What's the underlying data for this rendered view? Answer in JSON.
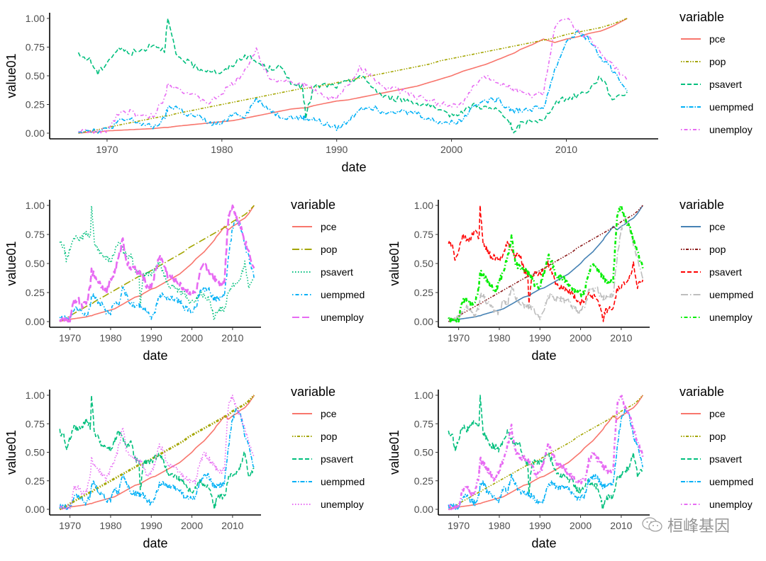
{
  "chart_data": [
    {
      "type": "line",
      "panel": "top",
      "xlabel": "date",
      "ylabel": "value01",
      "xlim": [
        1965,
        2018
      ],
      "ylim": [
        0,
        1
      ],
      "xticks": [
        1970,
        1980,
        1990,
        2000,
        2010
      ],
      "yticks": [
        "0.00",
        "0.25",
        "0.50",
        "0.75",
        "1.00"
      ],
      "legend_title": "variable",
      "legend_position": "right",
      "grid": false,
      "scale": "linetype+default-color",
      "series": [
        {
          "name": "pce",
          "color": "#F8766D",
          "linetype": "solid"
        },
        {
          "name": "pop",
          "color": "#A3A500",
          "linetype": "dotted-dash"
        },
        {
          "name": "psavert",
          "color": "#00BF7D",
          "linetype": "dashed"
        },
        {
          "name": "uempmed",
          "color": "#00B0F6",
          "linetype": "dash-dot"
        },
        {
          "name": "unemploy",
          "color": "#E76BF3",
          "linetype": "dot-dash"
        }
      ]
    },
    {
      "type": "line",
      "panel": "middle-left",
      "xlabel": "date",
      "ylabel": "value01",
      "xlim": [
        1965,
        2017
      ],
      "ylim": [
        0,
        1
      ],
      "xticks": [
        1970,
        1980,
        1990,
        2000,
        2010
      ],
      "yticks": [
        "0.00",
        "0.25",
        "0.50",
        "0.75",
        "1.00"
      ],
      "legend_title": "variable",
      "legend_position": "right",
      "grid": false,
      "scale": "linetype-manual",
      "series": [
        {
          "name": "pce",
          "color": "#F8766D",
          "linetype": "solid"
        },
        {
          "name": "pop",
          "color": "#A3A500",
          "linetype": "longdash-dot"
        },
        {
          "name": "psavert",
          "color": "#00BF7D",
          "linetype": "dotted"
        },
        {
          "name": "uempmed",
          "color": "#00B0F6",
          "linetype": "dot-dash"
        },
        {
          "name": "unemploy",
          "color": "#E76BF3",
          "linetype": "longdash"
        }
      ]
    },
    {
      "type": "line",
      "panel": "middle-right",
      "xlabel": "date",
      "ylabel": "value01",
      "xlim": [
        1965,
        2017
      ],
      "ylim": [
        0,
        1
      ],
      "xticks": [
        1970,
        1980,
        1990,
        2000,
        2010
      ],
      "yticks": [
        "0.00",
        "0.25",
        "0.50",
        "0.75",
        "1.00"
      ],
      "legend_title": "variable",
      "legend_position": "right",
      "grid": false,
      "scale": "color-manual",
      "series": [
        {
          "name": "pce",
          "color": "#4682B4",
          "linetype": "solid"
        },
        {
          "name": "pop",
          "color": "#8B1A1A",
          "linetype": "dotted-dash"
        },
        {
          "name": "psavert",
          "color": "#FF0000",
          "linetype": "dashed"
        },
        {
          "name": "uempmed",
          "color": "#BEBEBE",
          "linetype": "longdash-dot"
        },
        {
          "name": "unemploy",
          "color": "#00EE00",
          "linetype": "dot-dash"
        }
      ]
    },
    {
      "type": "line",
      "panel": "bottom-left",
      "xlabel": "date",
      "ylabel": "value01",
      "xlim": [
        1965,
        2017
      ],
      "ylim": [
        0,
        1
      ],
      "xticks": [
        1970,
        1980,
        1990,
        2000,
        2010
      ],
      "yticks": [
        "0.00",
        "0.25",
        "0.50",
        "0.75",
        "1.00"
      ],
      "legend_title": "variable",
      "legend_position": "right",
      "grid": false,
      "scale": "size-varies",
      "series": [
        {
          "name": "pce",
          "color": "#F8766D",
          "linetype": "solid"
        },
        {
          "name": "pop",
          "color": "#A3A500",
          "linetype": "dotted-dash"
        },
        {
          "name": "psavert",
          "color": "#00BF7D",
          "linetype": "dashed"
        },
        {
          "name": "uempmed",
          "color": "#00B0F6",
          "linetype": "dash-dot"
        },
        {
          "name": "unemploy",
          "color": "#E76BF3",
          "linetype": "dotted"
        }
      ]
    },
    {
      "type": "line",
      "panel": "bottom-right",
      "xlabel": "date",
      "ylabel": "value01",
      "xlim": [
        1965,
        2017
      ],
      "ylim": [
        0,
        1
      ],
      "xticks": [
        1970,
        1980,
        1990,
        2000,
        2010
      ],
      "yticks": [
        "0.00",
        "0.25",
        "0.50",
        "0.75",
        "1.00"
      ],
      "legend_title": "variable",
      "legend_position": "right",
      "grid": false,
      "scale": "linetype+default-color",
      "series": [
        {
          "name": "pce",
          "color": "#F8766D",
          "linetype": "solid"
        },
        {
          "name": "pop",
          "color": "#A3A500",
          "linetype": "dotted-dash"
        },
        {
          "name": "psavert",
          "color": "#00BF7D",
          "linetype": "dashed"
        },
        {
          "name": "uempmed",
          "color": "#00B0F6",
          "linetype": "dash-dot"
        },
        {
          "name": "unemploy",
          "color": "#E76BF3",
          "linetype": "dot-dash"
        }
      ]
    }
  ],
  "series_values": {
    "x": [
      1967.5,
      1968.5,
      1969.2,
      1970,
      1971,
      1972,
      1973,
      1974,
      1975,
      1975.3,
      1976,
      1977,
      1978,
      1979,
      1980,
      1981,
      1982,
      1983,
      1984,
      1985,
      1986,
      1987,
      1987.3,
      1988,
      1989,
      1990,
      1991,
      1992,
      1993,
      1994,
      1995,
      1996,
      1997,
      1998,
      1999,
      2000,
      2001,
      2002,
      2003,
      2004,
      2005,
      2005.5,
      2006,
      2007,
      2008,
      2009,
      2010,
      2011,
      2012,
      2013,
      2014,
      2015.3
    ],
    "pce": [
      0.0,
      0.01,
      0.01,
      0.02,
      0.025,
      0.03,
      0.035,
      0.04,
      0.05,
      0.05,
      0.06,
      0.07,
      0.08,
      0.09,
      0.1,
      0.11,
      0.13,
      0.15,
      0.17,
      0.19,
      0.21,
      0.22,
      0.22,
      0.24,
      0.26,
      0.28,
      0.29,
      0.31,
      0.33,
      0.35,
      0.37,
      0.39,
      0.41,
      0.44,
      0.47,
      0.5,
      0.54,
      0.57,
      0.6,
      0.64,
      0.68,
      0.7,
      0.73,
      0.77,
      0.82,
      0.79,
      0.82,
      0.84,
      0.87,
      0.89,
      0.93,
      1.0
    ],
    "pop": [
      0.0,
      0.02,
      0.03,
      0.05,
      0.07,
      0.09,
      0.11,
      0.13,
      0.15,
      0.15,
      0.17,
      0.19,
      0.21,
      0.23,
      0.25,
      0.27,
      0.29,
      0.31,
      0.33,
      0.35,
      0.37,
      0.39,
      0.39,
      0.4,
      0.42,
      0.44,
      0.46,
      0.48,
      0.5,
      0.52,
      0.54,
      0.56,
      0.58,
      0.6,
      0.63,
      0.65,
      0.67,
      0.69,
      0.71,
      0.73,
      0.75,
      0.76,
      0.77,
      0.79,
      0.81,
      0.83,
      0.86,
      0.88,
      0.9,
      0.92,
      0.95,
      1.0
    ],
    "psavert": [
      0.68,
      0.64,
      0.52,
      0.62,
      0.74,
      0.7,
      0.72,
      0.78,
      0.72,
      1.0,
      0.68,
      0.62,
      0.56,
      0.55,
      0.52,
      0.6,
      0.68,
      0.62,
      0.56,
      0.58,
      0.45,
      0.4,
      0.15,
      0.4,
      0.42,
      0.41,
      0.45,
      0.5,
      0.42,
      0.32,
      0.3,
      0.29,
      0.26,
      0.25,
      0.18,
      0.16,
      0.19,
      0.25,
      0.22,
      0.2,
      0.1,
      0.0,
      0.08,
      0.12,
      0.1,
      0.27,
      0.3,
      0.33,
      0.38,
      0.5,
      0.3,
      0.36
    ],
    "uempmed": [
      0.02,
      0.03,
      0.02,
      0.03,
      0.1,
      0.12,
      0.08,
      0.05,
      0.12,
      0.22,
      0.23,
      0.16,
      0.14,
      0.08,
      0.08,
      0.18,
      0.15,
      0.3,
      0.22,
      0.15,
      0.14,
      0.13,
      0.13,
      0.12,
      0.08,
      0.04,
      0.1,
      0.22,
      0.23,
      0.19,
      0.2,
      0.18,
      0.18,
      0.12,
      0.1,
      0.09,
      0.12,
      0.26,
      0.28,
      0.29,
      0.22,
      0.2,
      0.2,
      0.21,
      0.22,
      0.55,
      0.8,
      0.88,
      0.82,
      0.65,
      0.55,
      0.37
    ],
    "unemploy": [
      0.02,
      0.01,
      0.01,
      0.02,
      0.18,
      0.19,
      0.14,
      0.15,
      0.3,
      0.44,
      0.4,
      0.35,
      0.3,
      0.26,
      0.35,
      0.43,
      0.55,
      0.72,
      0.5,
      0.46,
      0.45,
      0.42,
      0.42,
      0.38,
      0.3,
      0.31,
      0.42,
      0.57,
      0.5,
      0.4,
      0.38,
      0.36,
      0.32,
      0.28,
      0.26,
      0.24,
      0.25,
      0.42,
      0.49,
      0.45,
      0.4,
      0.38,
      0.36,
      0.33,
      0.35,
      0.92,
      1.0,
      0.88,
      0.82,
      0.7,
      0.6,
      0.46
    ]
  },
  "watermark": {
    "text": "桓峰基因",
    "icon": "wechat-icon"
  }
}
